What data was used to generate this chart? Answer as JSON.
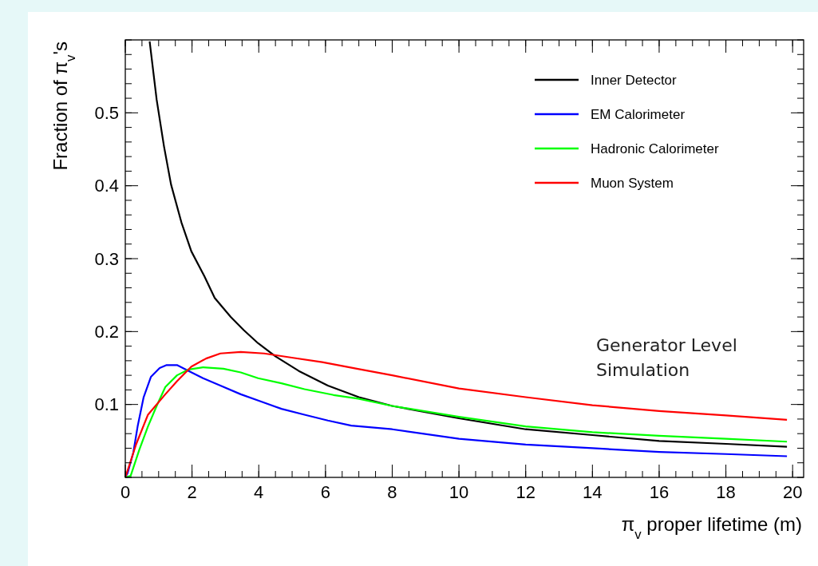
{
  "chart_data": {
    "type": "line",
    "xlabel": "π$_{v}$ proper lifetime (m)",
    "ylabel": "Fraction of π$_{v}$'s",
    "xlim": [
      0,
      20.33
    ],
    "xticks": [
      0,
      2,
      4,
      6,
      8,
      10,
      12,
      14,
      16,
      18,
      20
    ],
    "ylim": [
      0,
      0.6
    ],
    "yticks": [
      0.1,
      0.2,
      0.3,
      0.4,
      0.5
    ],
    "grid": false,
    "legend": "top right",
    "marker": "none",
    "line_style": "solid",
    "annotations": [
      "Generator Level\nSimulation"
    ],
    "series": [
      {
        "name": "Inner Detector",
        "color": "#000000",
        "x": [
          0.73,
          0.94,
          1.16,
          1.37,
          1.68,
          1.98,
          2.37,
          2.68,
          3.16,
          3.55,
          3.98,
          4.5,
          5.2,
          6.07,
          7,
          8,
          10,
          12,
          14,
          16,
          18,
          19.83
        ],
        "values": [
          0.598,
          0.518,
          0.454,
          0.402,
          0.35,
          0.31,
          0.276,
          0.246,
          0.22,
          0.202,
          0.184,
          0.166,
          0.146,
          0.126,
          0.11,
          0.098,
          0.081,
          0.066,
          0.058,
          0.05,
          0.046,
          0.042
        ]
      },
      {
        "name": "EM Calorimeter",
        "color": "#0000ff",
        "x": [
          0,
          0.07,
          0.24,
          0.37,
          0.55,
          0.77,
          1.03,
          1.24,
          1.55,
          1.9,
          2.33,
          2.85,
          3.46,
          4.07,
          4.68,
          5.37,
          6.07,
          6.77,
          8,
          10,
          12,
          14,
          16,
          18,
          19.83
        ],
        "values": [
          0,
          0.006,
          0.034,
          0.07,
          0.11,
          0.138,
          0.15,
          0.154,
          0.154,
          0.146,
          0.136,
          0.126,
          0.114,
          0.104,
          0.094,
          0.086,
          0.078,
          0.071,
          0.066,
          0.053,
          0.045,
          0.04,
          0.035,
          0.032,
          0.029
        ]
      },
      {
        "name": "Hadronic Calorimeter",
        "color": "#00ff00",
        "x": [
          0,
          0.16,
          0.42,
          0.68,
          0.94,
          1.2,
          1.55,
          1.9,
          2.33,
          2.94,
          3.46,
          3.98,
          4.68,
          5.37,
          6.24,
          6.98,
          8,
          10,
          12,
          14,
          16,
          18,
          19.83
        ],
        "values": [
          0,
          0.002,
          0.038,
          0.07,
          0.098,
          0.124,
          0.14,
          0.148,
          0.151,
          0.149,
          0.144,
          0.136,
          0.129,
          0.121,
          0.113,
          0.108,
          0.098,
          0.083,
          0.07,
          0.062,
          0.057,
          0.053,
          0.049
        ]
      },
      {
        "name": "Muon System",
        "color": "#ff0000",
        "x": [
          0,
          0.33,
          0.68,
          1.2,
          1.55,
          1.98,
          2.42,
          2.85,
          3.46,
          4.16,
          5.03,
          5.9,
          6.94,
          8,
          10,
          12,
          14,
          16,
          18,
          19.83
        ],
        "values": [
          0,
          0.046,
          0.086,
          0.114,
          0.132,
          0.152,
          0.163,
          0.17,
          0.172,
          0.17,
          0.164,
          0.158,
          0.149,
          0.14,
          0.122,
          0.11,
          0.099,
          0.091,
          0.085,
          0.079
        ]
      }
    ]
  }
}
